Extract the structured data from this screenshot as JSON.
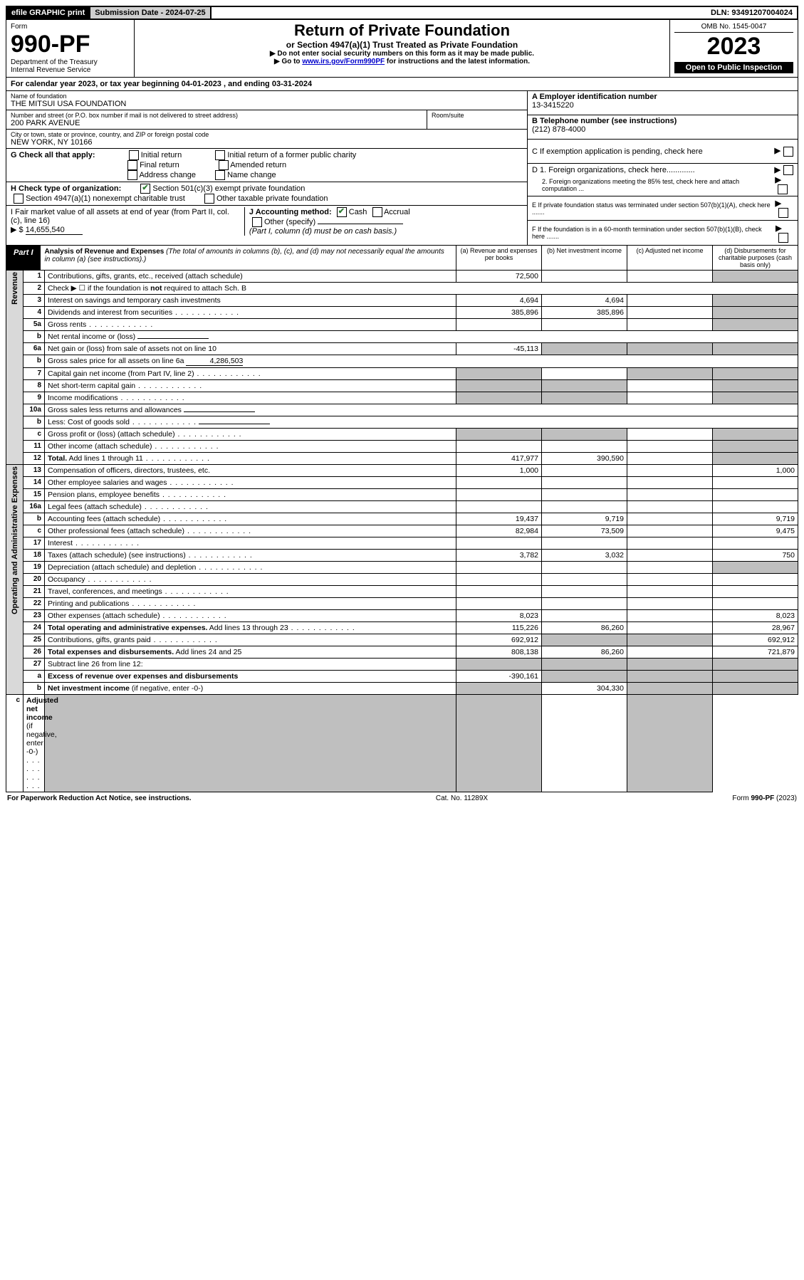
{
  "topbar": {
    "efile": "efile GRAPHIC print",
    "subdate_label": "Submission Date - ",
    "subdate": "2024-07-25",
    "dln_label": "DLN: ",
    "dln": "93491207004024"
  },
  "header": {
    "form_word": "Form",
    "form_num": "990-PF",
    "dept": "Department of the Treasury",
    "irs": "Internal Revenue Service",
    "title": "Return of Private Foundation",
    "subtitle": "or Section 4947(a)(1) Trust Treated as Private Foundation",
    "instr1": "▶ Do not enter social security numbers on this form as it may be made public.",
    "instr2_pre": "▶ Go to ",
    "instr2_link": "www.irs.gov/Form990PF",
    "instr2_post": " for instructions and the latest information.",
    "omb": "OMB No. 1545-0047",
    "year": "2023",
    "open": "Open to Public Inspection"
  },
  "calyear": {
    "pre": "For calendar year 2023, or tax year beginning ",
    "begin": "04-01-2023",
    "mid": " , and ending ",
    "end": "03-31-2024"
  },
  "info": {
    "name_label": "Name of foundation",
    "name": "THE MITSUI USA FOUNDATION",
    "addr_label": "Number and street (or P.O. box number if mail is not delivered to street address)",
    "addr": "200 PARK AVENUE",
    "room_label": "Room/suite",
    "city_label": "City or town, state or province, country, and ZIP or foreign postal code",
    "city": "NEW YORK, NY  10166",
    "A_label": "A Employer identification number",
    "A": "13-3415220",
    "B_label": "B Telephone number (see instructions)",
    "B": "(212) 878-4000",
    "C_label": "C If exemption application is pending, check here",
    "D1": "D 1. Foreign organizations, check here.............",
    "D2": "2. Foreign organizations meeting the 85% test, check here and attach computation ...",
    "E": "E  If private foundation status was terminated under section 507(b)(1)(A), check here .......",
    "F": "F  If the foundation is in a 60-month termination under section 507(b)(1)(B), check here .......",
    "G_label": "G Check all that apply:",
    "G_opts": [
      "Initial return",
      "Final return",
      "Address change",
      "Initial return of a former public charity",
      "Amended return",
      "Name change"
    ],
    "H_label": "H Check type of organization:",
    "H1": "Section 501(c)(3) exempt private foundation",
    "H2": "Section 4947(a)(1) nonexempt charitable trust",
    "H3": "Other taxable private foundation",
    "I_label": "I Fair market value of all assets at end of year (from Part II, col. (c), line 16)",
    "I_val": "14,655,540",
    "J_label": "J Accounting method:",
    "J_cash": "Cash",
    "J_accrual": "Accrual",
    "J_other": "Other (specify)",
    "J_note": "(Part I, column (d) must be on cash basis.)"
  },
  "part1": {
    "tag": "Part I",
    "title": "Analysis of Revenue and Expenses",
    "note": "(The total of amounts in columns (b), (c), and (d) may not necessarily equal the amounts in column (a) (see instructions).)",
    "col_a": "(a)  Revenue and expenses per books",
    "col_b": "(b)  Net investment income",
    "col_c": "(c)  Adjusted net income",
    "col_d": "(d)  Disbursements for charitable purposes (cash basis only)"
  },
  "sidecats": {
    "rev": "Revenue",
    "exp": "Operating and Administrative Expenses"
  },
  "rows": [
    {
      "n": "1",
      "label": "Contributions, gifts, grants, etc., received (attach schedule)",
      "a": "72,500",
      "b": "",
      "c": "",
      "d": "",
      "d_shade": true
    },
    {
      "n": "2",
      "label_html": "Check ▶ ☐ if the foundation is <b>not</b> required to attach Sch. B",
      "cols": "none"
    },
    {
      "n": "3",
      "label": "Interest on savings and temporary cash investments",
      "a": "4,694",
      "b": "4,694",
      "c": "",
      "d": "",
      "d_shade": true
    },
    {
      "n": "4",
      "label": "Dividends and interest from securities",
      "dots": true,
      "a": "385,896",
      "b": "385,896",
      "c": "",
      "d": "",
      "d_shade": true
    },
    {
      "n": "5a",
      "label": "Gross rents",
      "dots": true,
      "a": "",
      "b": "",
      "c": "",
      "d": "",
      "d_shade": true
    },
    {
      "n": "b",
      "label": "Net rental income or (loss)",
      "inline_blank": true,
      "cols": "none"
    },
    {
      "n": "6a",
      "label": "Net gain or (loss) from sale of assets not on line 10",
      "a": "-45,113",
      "b": "",
      "c": "",
      "d": "",
      "b_shade": true,
      "c_shade": true,
      "d_shade": true
    },
    {
      "n": "b",
      "label_html": "Gross sales price for all assets on line 6a <span class='uline' style='text-align:right'>4,286,503</span>",
      "cols": "none"
    },
    {
      "n": "7",
      "label": "Capital gain net income (from Part IV, line 2)",
      "dots": true,
      "a": "",
      "b": "",
      "c": "",
      "d": "",
      "a_shade": true,
      "c_shade": true,
      "d_shade": true
    },
    {
      "n": "8",
      "label": "Net short-term capital gain",
      "dots": true,
      "a": "",
      "b": "",
      "c": "",
      "d": "",
      "a_shade": true,
      "b_shade": true,
      "d_shade": true
    },
    {
      "n": "9",
      "label": "Income modifications",
      "dots": true,
      "a": "",
      "b": "",
      "c": "",
      "d": "",
      "a_shade": true,
      "b_shade": true,
      "d_shade": true
    },
    {
      "n": "10a",
      "label": "Gross sales less returns and allowances",
      "inline_blank": true,
      "cols": "none"
    },
    {
      "n": "b",
      "label": "Less: Cost of goods sold",
      "dots": true,
      "inline_blank": true,
      "cols": "none"
    },
    {
      "n": "c",
      "label": "Gross profit or (loss) (attach schedule)",
      "dots": true,
      "a": "",
      "b": "",
      "c": "",
      "d": "",
      "a_shade": true,
      "b_shade": true,
      "d_shade": true
    },
    {
      "n": "11",
      "label": "Other income (attach schedule)",
      "dots": true,
      "a": "",
      "b": "",
      "c": "",
      "d": "",
      "d_shade": true
    },
    {
      "n": "12",
      "label": "<b>Total.</b> Add lines 1 through 11",
      "dots": true,
      "a": "417,977",
      "b": "390,590",
      "c": "",
      "d": "",
      "d_shade": true
    },
    {
      "n": "13",
      "label": "Compensation of officers, directors, trustees, etc.",
      "a": "1,000",
      "b": "",
      "c": "",
      "d": "1,000"
    },
    {
      "n": "14",
      "label": "Other employee salaries and wages",
      "dots": true,
      "a": "",
      "b": "",
      "c": "",
      "d": ""
    },
    {
      "n": "15",
      "label": "Pension plans, employee benefits",
      "dots": true,
      "a": "",
      "b": "",
      "c": "",
      "d": ""
    },
    {
      "n": "16a",
      "label": "Legal fees (attach schedule)",
      "dots": true,
      "a": "",
      "b": "",
      "c": "",
      "d": ""
    },
    {
      "n": "b",
      "label": "Accounting fees (attach schedule)",
      "dots": true,
      "a": "19,437",
      "b": "9,719",
      "c": "",
      "d": "9,719"
    },
    {
      "n": "c",
      "label": "Other professional fees (attach schedule)",
      "dots": true,
      "a": "82,984",
      "b": "73,509",
      "c": "",
      "d": "9,475"
    },
    {
      "n": "17",
      "label": "Interest",
      "dots": true,
      "a": "",
      "b": "",
      "c": "",
      "d": ""
    },
    {
      "n": "18",
      "label": "Taxes (attach schedule) (see instructions)",
      "dots": true,
      "a": "3,782",
      "b": "3,032",
      "c": "",
      "d": "750"
    },
    {
      "n": "19",
      "label": "Depreciation (attach schedule) and depletion",
      "dots": true,
      "a": "",
      "b": "",
      "c": "",
      "d": "",
      "d_shade": true
    },
    {
      "n": "20",
      "label": "Occupancy",
      "dots": true,
      "a": "",
      "b": "",
      "c": "",
      "d": ""
    },
    {
      "n": "21",
      "label": "Travel, conferences, and meetings",
      "dots": true,
      "a": "",
      "b": "",
      "c": "",
      "d": ""
    },
    {
      "n": "22",
      "label": "Printing and publications",
      "dots": true,
      "a": "",
      "b": "",
      "c": "",
      "d": ""
    },
    {
      "n": "23",
      "label": "Other expenses (attach schedule)",
      "dots": true,
      "a": "8,023",
      "b": "",
      "c": "",
      "d": "8,023"
    },
    {
      "n": "24",
      "label": "<b>Total operating and administrative expenses.</b> Add lines 13 through 23",
      "dots": true,
      "a": "115,226",
      "b": "86,260",
      "c": "",
      "d": "28,967"
    },
    {
      "n": "25",
      "label": "Contributions, gifts, grants paid",
      "dots": true,
      "a": "692,912",
      "b": "",
      "c": "",
      "d": "692,912",
      "b_shade": true,
      "c_shade": true
    },
    {
      "n": "26",
      "label": "<b>Total expenses and disbursements.</b> Add lines 24 and 25",
      "a": "808,138",
      "b": "86,260",
      "c": "",
      "d": "721,879"
    },
    {
      "n": "27",
      "label": "Subtract line 26 from line 12:",
      "a": "",
      "b": "",
      "c": "",
      "d": "",
      "a_shade": true,
      "b_shade": true,
      "c_shade": true,
      "d_shade": true
    },
    {
      "n": "a",
      "label": "<b>Excess of revenue over expenses and disbursements</b>",
      "a": "-390,161",
      "b": "",
      "c": "",
      "d": "",
      "b_shade": true,
      "c_shade": true,
      "d_shade": true
    },
    {
      "n": "b",
      "label": "<b>Net investment income</b> (if negative, enter -0-)",
      "a": "",
      "b": "304,330",
      "c": "",
      "d": "",
      "a_shade": true,
      "c_shade": true,
      "d_shade": true
    },
    {
      "n": "c",
      "label": "<b>Adjusted net income</b> (if negative, enter -0-)",
      "dots": true,
      "a": "",
      "b": "",
      "c": "",
      "d": "",
      "a_shade": true,
      "b_shade": true,
      "d_shade": true
    }
  ],
  "rev_span": 16,
  "exp_span": 19,
  "footer": {
    "left": "For Paperwork Reduction Act Notice, see instructions.",
    "mid": "Cat. No. 11289X",
    "right": "Form 990-PF (2023)"
  }
}
